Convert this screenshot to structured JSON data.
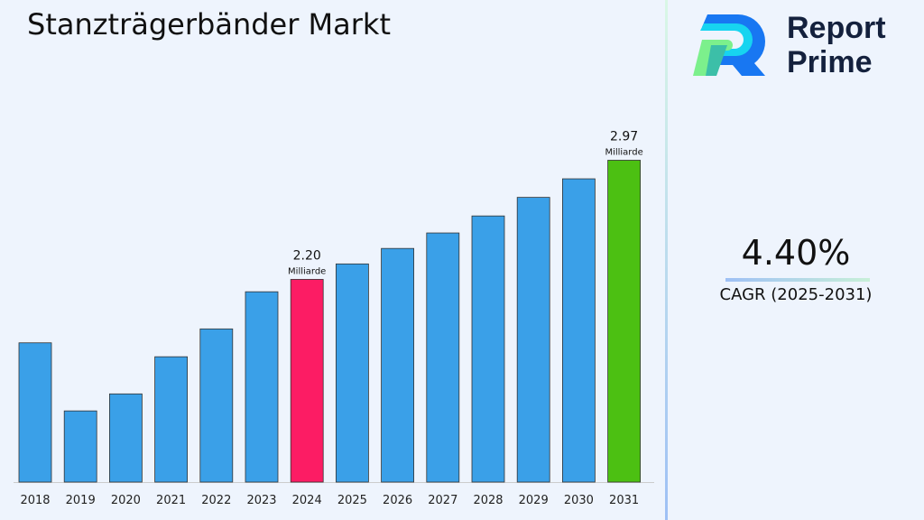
{
  "chart_data": {
    "type": "bar",
    "title": "Stanzträgerbänder Markt",
    "categories": [
      "2018",
      "2019",
      "2020",
      "2021",
      "2022",
      "2023",
      "2024",
      "2025",
      "2026",
      "2027",
      "2028",
      "2029",
      "2030",
      "2031"
    ],
    "values": [
      1.79,
      1.35,
      1.46,
      1.7,
      1.88,
      2.12,
      2.2,
      2.3,
      2.4,
      2.5,
      2.61,
      2.73,
      2.85,
      2.97
    ],
    "colors": {
      "default": "#3aa0e8",
      "highlight_2024": "#fc1c64",
      "highlight_2031": "#4cc012"
    },
    "data_labels": [
      {
        "category": "2024",
        "value": "2.20",
        "unit": "Milliarde"
      },
      {
        "category": "2031",
        "value": "2.97",
        "unit": "Milliarde"
      }
    ],
    "ylim": [
      0.89,
      3.0
    ],
    "grid": false,
    "xlabel": "",
    "ylabel": ""
  },
  "cagr": {
    "value": "4.40%",
    "label": "CAGR (2025-2031)"
  },
  "logo": {
    "line1": "Report",
    "line2": "Prime"
  }
}
